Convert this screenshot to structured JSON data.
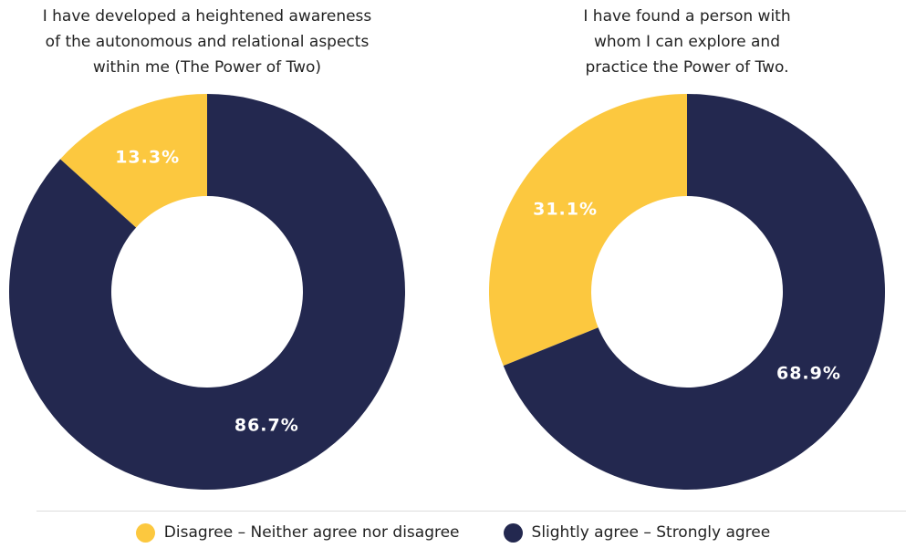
{
  "colors": {
    "disagree": "#FCC83F",
    "agree": "#23284F",
    "label_text": "#FFFFFF"
  },
  "legend": {
    "items": [
      {
        "label": "Disagree – Neither agree nor disagree",
        "color": "#FCC83F"
      },
      {
        "label": "Slightly agree – Strongly agree",
        "color": "#23284F"
      }
    ]
  },
  "chart_data": [
    {
      "type": "pie",
      "donut": true,
      "title": "I have developed a heightened awareness\nof the autonomous and relational aspects\nwithin me (The Power of Two)",
      "categories": [
        "Disagree – Neither agree nor disagree",
        "Slightly agree – Strongly agree"
      ],
      "values": [
        13.3,
        86.7
      ],
      "labels": [
        "13.3%",
        "86.7%"
      ],
      "legend": "bottom"
    },
    {
      "type": "pie",
      "donut": true,
      "title": "I have found a person with\nwhom I can explore and\npractice the Power of Two.",
      "categories": [
        "Disagree – Neither agree nor disagree",
        "Slightly agree – Strongly agree"
      ],
      "values": [
        31.1,
        68.9
      ],
      "labels": [
        "31.1%",
        "68.9%"
      ],
      "legend": "bottom"
    }
  ]
}
